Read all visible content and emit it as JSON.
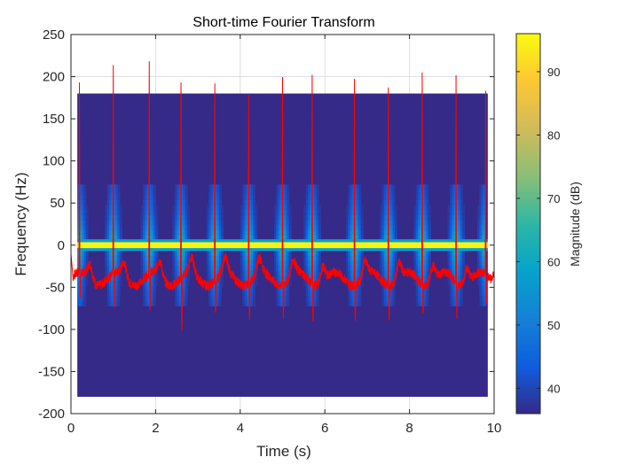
{
  "chart_data": {
    "type": "heatmap",
    "title": "Short-time Fourier Transform",
    "xlabel": "Time (s)",
    "ylabel": "Frequency (Hz)",
    "xlim": [
      0,
      10
    ],
    "ylim": [
      -200,
      250
    ],
    "xticks": [
      0,
      2,
      4,
      6,
      8,
      10
    ],
    "yticks": [
      -200,
      -150,
      -100,
      -50,
      0,
      50,
      100,
      150,
      200,
      250
    ],
    "grid": true,
    "spectrogram": {
      "time_range": [
        0.15,
        9.85
      ],
      "freq_range": [
        -180,
        180
      ],
      "background_db": 36,
      "dc_band_db": 95,
      "transient_times": [
        0.2,
        1.0,
        1.85,
        2.6,
        3.4,
        4.2,
        5.0,
        5.7,
        6.7,
        7.5,
        8.3,
        9.1,
        9.8
      ]
    },
    "colorbar": {
      "label": "Magnitude (dB)",
      "range": [
        36,
        96
      ],
      "ticks": [
        40,
        50,
        60,
        70,
        80,
        90
      ]
    },
    "overlay_series": {
      "name": "",
      "color": "#ff0000",
      "type": "line",
      "baseline": -40,
      "spikes": [
        {
          "t": 0.2,
          "peak": 190,
          "dip": -70
        },
        {
          "t": 1.0,
          "peak": 212,
          "dip": -80
        },
        {
          "t": 1.85,
          "peak": 215,
          "dip": -80
        },
        {
          "t": 2.6,
          "peak": 190,
          "dip": -105
        },
        {
          "t": 3.4,
          "peak": 200,
          "dip": -80
        },
        {
          "t": 4.2,
          "peak": 190,
          "dip": -80
        },
        {
          "t": 5.0,
          "peak": 212,
          "dip": -80
        },
        {
          "t": 5.7,
          "peak": 205,
          "dip": -80
        },
        {
          "t": 6.7,
          "peak": 200,
          "dip": -80
        },
        {
          "t": 7.5,
          "peak": 200,
          "dip": -80
        },
        {
          "t": 8.3,
          "peak": 210,
          "dip": -80
        },
        {
          "t": 9.1,
          "peak": 200,
          "dip": -80
        },
        {
          "t": 9.8,
          "peak": 175,
          "dip": -75
        }
      ]
    }
  }
}
